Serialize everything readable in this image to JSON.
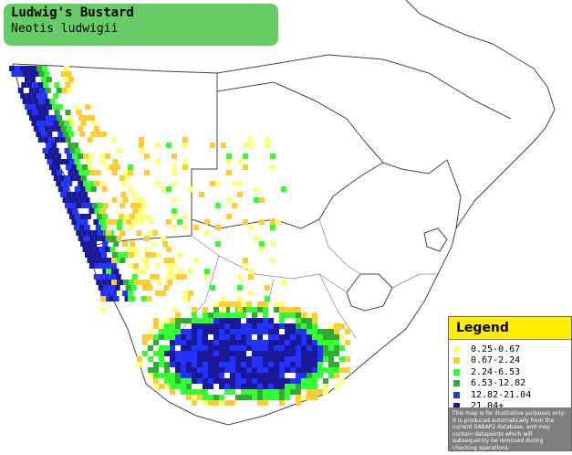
{
  "title": {
    "common_name": "Ludwig's Bustard",
    "scientific_name": "Neotis ludwigii",
    "box_color": "#66cc66"
  },
  "legend": {
    "heading": "Legend",
    "header_color": "#ffee00",
    "items": [
      {
        "label": "0.25-0.67",
        "color": "#ffff80"
      },
      {
        "label": "0.67-2.24",
        "color": "#ffcc33"
      },
      {
        "label": "2.24-6.53",
        "color": "#33ff33"
      },
      {
        "label": "6.53-12.82",
        "color": "#33aa33"
      },
      {
        "label": "12.82-21.04",
        "color": "#2233ff"
      },
      {
        "label": "21.04+",
        "color": "#1a1a99"
      }
    ],
    "disclaimer": "This map is for illustrative purposes only; it is produced automatically from the current SABAP2 database, and may contain datapoints which will subsequently be removed during checking operations."
  },
  "map": {
    "land_color": "#ffffff",
    "border_color": "#444444"
  }
}
